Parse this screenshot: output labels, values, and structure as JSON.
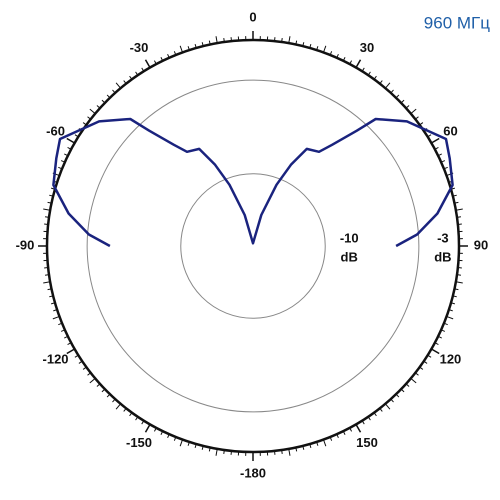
{
  "chart_data": {
    "type": "polar",
    "annotation": "960 МГц",
    "r_unit": "dB",
    "rlim": [
      -15.4,
      0
    ],
    "rticks": [
      -10,
      -3,
      0
    ],
    "thetaticks": [
      0,
      30,
      60,
      90,
      120,
      150,
      -180,
      -150,
      -120,
      -90,
      -60,
      -30
    ],
    "minor_tick_step": 2,
    "series": [
      {
        "color": "#1a237e",
        "theta": [
          -90,
          -86,
          -80,
          -73,
          -66,
          -61,
          -51,
          -44,
          -42,
          -38,
          -35,
          -29,
          -25,
          -21,
          -15,
          0,
          15,
          21,
          25,
          29,
          35,
          38,
          42,
          44,
          51,
          61,
          66,
          73,
          80,
          86,
          90
        ],
        "values": [
          -4.7,
          -3.1,
          -1.4,
          0.2,
          0.7,
          1.1,
          -0.6,
          -2.2,
          -3.8,
          -5.8,
          -6.8,
          -7.1,
          -8.7,
          -10.5,
          -13,
          -15.2,
          -13,
          -10.5,
          -8.7,
          -7.1,
          -6.8,
          -5.8,
          -3.8,
          -2.2,
          -0.6,
          1.1,
          0.7,
          0.2,
          -1.4,
          -3.1,
          -4.7
        ]
      }
    ]
  }
}
